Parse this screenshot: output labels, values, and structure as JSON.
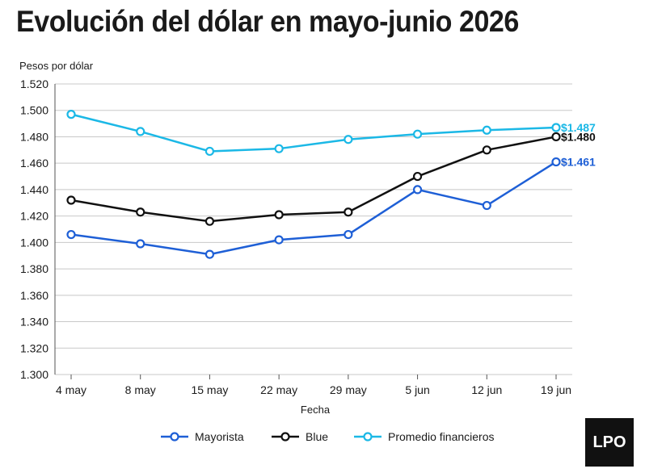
{
  "title": "Evolución del dólar en mayo-junio 2026",
  "logo": "LPO",
  "colors": {
    "Mayorista": "#1e5fd6",
    "Blue": "#111111",
    "Promedio financieros": "#1bb8e6",
    "grid": "#c8c8c8"
  },
  "chart_data": {
    "type": "line",
    "ylabel": "Pesos por dólar",
    "xlabel": "Fecha",
    "x": [
      "4 may",
      "8 may",
      "15 may",
      "22 may",
      "29 may",
      "5 jun",
      "12 jun",
      "19 jun"
    ],
    "ylim": [
      1300,
      1520
    ],
    "yticks": [
      1300,
      1320,
      1340,
      1360,
      1380,
      1400,
      1420,
      1440,
      1460,
      1480,
      1500,
      1520
    ],
    "ytick_labels": [
      "1.300",
      "1.320",
      "1.340",
      "1.360",
      "1.380",
      "1.400",
      "1.420",
      "1.440",
      "1.460",
      "1.480",
      "1.500",
      "1.520"
    ],
    "grid": "horizontal",
    "legend_position": "bottom",
    "series": [
      {
        "name": "Mayorista",
        "values": [
          1406,
          1399,
          1391,
          1402,
          1406,
          1440,
          1428,
          1461
        ],
        "end_label": "$1.461"
      },
      {
        "name": "Blue",
        "values": [
          1432,
          1423,
          1416,
          1421,
          1423,
          1450,
          1470,
          1480
        ],
        "end_label": "$1.480"
      },
      {
        "name": "Promedio financieros",
        "values": [
          1497,
          1484,
          1469,
          1471,
          1478,
          1482,
          1485,
          1487
        ],
        "end_label": "$1.487"
      }
    ]
  }
}
